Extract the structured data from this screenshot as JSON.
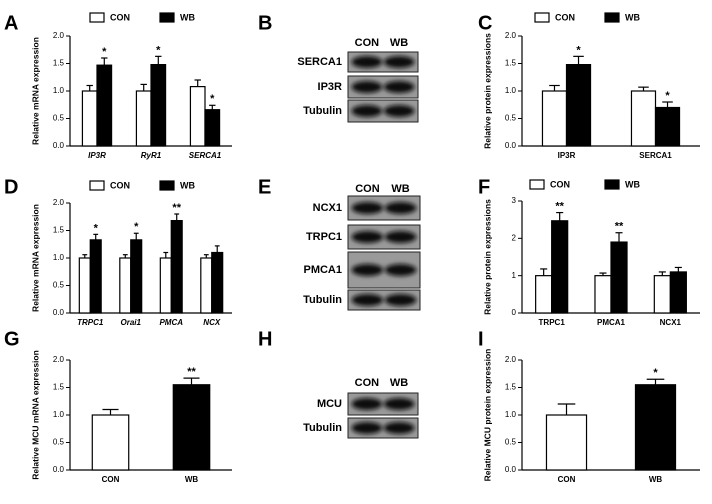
{
  "panel_letters": [
    "A",
    "B",
    "C",
    "D",
    "E",
    "F",
    "G",
    "H",
    "I"
  ],
  "chart_data": [
    {
      "type": "bar",
      "y_label": "Relative mRNA expression",
      "categories": [
        "IP3R",
        "RyR1",
        "SERCA1"
      ],
      "series": [
        {
          "name": "CON",
          "color": "#ffffff",
          "values": [
            1.0,
            1.0,
            1.08
          ],
          "errors": [
            0.1,
            0.12,
            0.12
          ],
          "annotations": [
            null,
            null,
            null
          ]
        },
        {
          "name": "WB",
          "color": "#000000",
          "values": [
            1.47,
            1.48,
            0.66
          ],
          "errors": [
            0.13,
            0.15,
            0.08
          ],
          "annotations": [
            "*",
            "*",
            "*"
          ]
        }
      ],
      "ylim": [
        0,
        2
      ],
      "yticks": [
        {
          "value": 0,
          "label": "0.0"
        },
        {
          "value": 0.5,
          "label": "0.5"
        },
        {
          "value": 1,
          "label": "1.0"
        },
        {
          "value": 1.5,
          "label": "1.5"
        },
        {
          "value": 2,
          "label": "2.0"
        }
      ]
    },
    {
      "type": "bar",
      "y_label": "Relative protein expressions",
      "categories": [
        "IP3R",
        "SERCA1"
      ],
      "series": [
        {
          "name": "CON",
          "color": "#ffffff",
          "values": [
            1.0,
            1.0
          ],
          "errors": [
            0.1,
            0.07
          ],
          "annotations": [
            null,
            null
          ]
        },
        {
          "name": "WB",
          "color": "#000000",
          "values": [
            1.48,
            0.7
          ],
          "errors": [
            0.15,
            0.1
          ],
          "annotations": [
            "*",
            "*"
          ]
        }
      ],
      "ylim": [
        0,
        2
      ],
      "yticks": [
        {
          "value": 0,
          "label": "0.0"
        },
        {
          "value": 0.5,
          "label": "0.5"
        },
        {
          "value": 1,
          "label": "1.0"
        },
        {
          "value": 1.5,
          "label": "1.5"
        },
        {
          "value": 2,
          "label": "2.0"
        }
      ]
    },
    {
      "type": "bar",
      "y_label": "Relative mRNA expression",
      "categories": [
        "TRPC1",
        "Orai1",
        "PMCA",
        "NCX"
      ],
      "series": [
        {
          "name": "CON",
          "color": "#ffffff",
          "values": [
            1.0,
            1.0,
            1.0,
            1.0
          ],
          "errors": [
            0.06,
            0.06,
            0.1,
            0.06
          ],
          "annotations": [
            null,
            null,
            null,
            null
          ]
        },
        {
          "name": "WB",
          "color": "#000000",
          "values": [
            1.33,
            1.33,
            1.68,
            1.1
          ],
          "errors": [
            0.1,
            0.12,
            0.12,
            0.12
          ],
          "annotations": [
            "*",
            "*",
            "**",
            null
          ]
        }
      ],
      "ylim": [
        0,
        2
      ],
      "yticks": [
        {
          "value": 0,
          "label": "0.0"
        },
        {
          "value": 0.5,
          "label": "0.5"
        },
        {
          "value": 1,
          "label": "1.0"
        },
        {
          "value": 1.5,
          "label": "1.5"
        },
        {
          "value": 2,
          "label": "2.0"
        }
      ]
    },
    {
      "type": "bar",
      "y_label": "Relative protein expressions",
      "categories": [
        "TRPC1",
        "PMCA1",
        "NCX1"
      ],
      "series": [
        {
          "name": "CON",
          "color": "#ffffff",
          "values": [
            1.0,
            1.0,
            1.0
          ],
          "errors": [
            0.18,
            0.07,
            0.1
          ],
          "annotations": [
            null,
            null,
            null
          ]
        },
        {
          "name": "WB",
          "color": "#000000",
          "values": [
            2.47,
            1.9,
            1.1
          ],
          "errors": [
            0.22,
            0.25,
            0.12
          ],
          "annotations": [
            "**",
            "**",
            null
          ]
        }
      ],
      "ylim": [
        0,
        3
      ],
      "yticks": [
        0,
        1,
        2,
        3
      ]
    },
    {
      "type": "bar",
      "y_label": "Relative MCU mRNA expression",
      "categories": [
        "CON",
        "WB"
      ],
      "series": [
        {
          "colors": [
            "#ffffff",
            "#000000"
          ],
          "values": [
            1.0,
            1.55
          ],
          "errors": [
            0.1,
            0.12
          ],
          "annotations": [
            null,
            "**"
          ]
        }
      ],
      "ylim": [
        0,
        2
      ],
      "yticks": [
        {
          "value": 0,
          "label": "0.0"
        },
        {
          "value": 0.5,
          "label": "0.5"
        },
        {
          "value": 1,
          "label": "1.0"
        },
        {
          "value": 1.5,
          "label": "1.5"
        },
        {
          "value": 2,
          "label": "2.0"
        }
      ]
    },
    {
      "type": "bar",
      "y_label": "Relative MCU protein expression",
      "categories": [
        "CON",
        "WB"
      ],
      "series": [
        {
          "colors": [
            "#ffffff",
            "#000000"
          ],
          "values": [
            1.0,
            1.55
          ],
          "errors": [
            0.2,
            0.1
          ],
          "annotations": [
            null,
            "*"
          ]
        }
      ],
      "ylim": [
        0,
        2
      ],
      "yticks": [
        {
          "value": 0,
          "label": "0.0"
        },
        {
          "value": 0.5,
          "label": "0.5"
        },
        {
          "value": 1,
          "label": "1.0"
        },
        {
          "value": 1.5,
          "label": "1.5"
        },
        {
          "value": 2,
          "label": "2.0"
        }
      ]
    }
  ],
  "blots": [
    {
      "columns": [
        "CON",
        "WB"
      ],
      "rows": [
        "SERCA1",
        "IP3R",
        "Tubulin"
      ]
    },
    {
      "columns": [
        "CON",
        "WB"
      ],
      "rows": [
        "NCX1",
        "TRPC1",
        "PMCA1",
        "Tubulin"
      ]
    },
    {
      "columns": [
        "CON",
        "WB"
      ],
      "rows": [
        "MCU",
        "Tubulin"
      ]
    }
  ]
}
